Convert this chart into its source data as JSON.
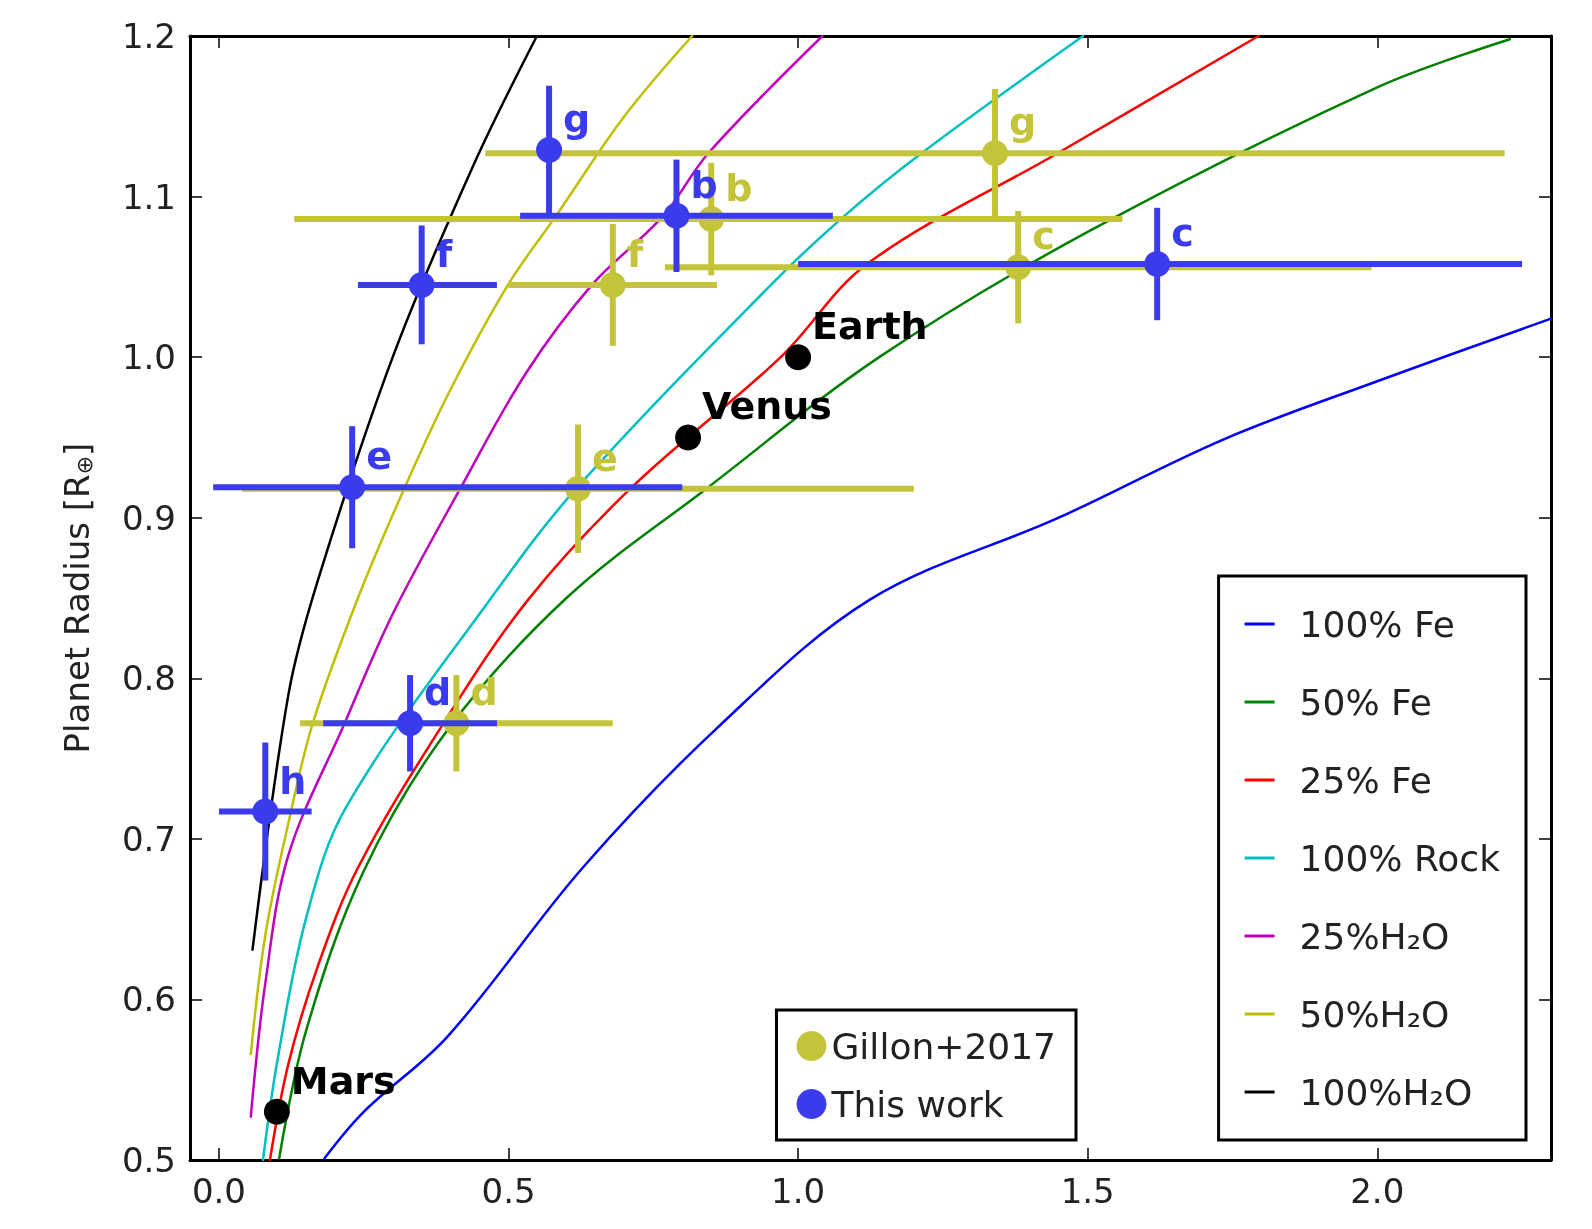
{
  "chart_data": {
    "type": "scatter",
    "ylabel": "Planet Radius [R$_{⊕}$]",
    "xlim": [
      -0.05,
      2.3
    ],
    "ylim": [
      0.5,
      1.2
    ],
    "xticks": [
      {
        "value": 0,
        "label": "0.0"
      },
      0.5,
      {
        "value": 1,
        "label": "1.0"
      },
      1.5,
      {
        "value": 2,
        "label": "2.0"
      }
    ],
    "yticks": [
      0.5,
      0.6,
      0.7,
      0.8,
      0.9,
      {
        "value": 1,
        "label": "1.0"
      },
      1.1,
      1.2
    ],
    "grid": false,
    "legend": "bottom right",
    "series": [
      {
        "type": "line",
        "marker": "none",
        "name": "100% Fe",
        "color": "#0000ff",
        "x": [
          0.182,
          0.25,
          0.395,
          0.628,
          0.86,
          1.124,
          1.45,
          1.736,
          2.0,
          2.3
        ],
        "values": [
          0.501,
          0.53,
          0.577,
          0.682,
          0.769,
          0.849,
          0.9,
          0.949,
          0.985,
          1.024
        ]
      },
      {
        "type": "line",
        "marker": "none",
        "name": "50% Fe",
        "color": "#008000",
        "x": [
          0.104,
          0.15,
          0.25,
          0.395,
          0.6,
          0.845,
          1.14,
          1.5,
          2.0,
          2.229
        ],
        "values": [
          0.501,
          0.58,
          0.68,
          0.768,
          0.85,
          0.919,
          1.0,
          1.078,
          1.168,
          1.198
        ]
      },
      {
        "type": "line",
        "marker": "none",
        "name": "25% Fe",
        "color": "#ff0000",
        "x": [
          0.088,
          0.12,
          0.17,
          0.24,
          0.386,
          0.534,
          0.713,
          0.97,
          1.119,
          1.448,
          1.795
        ],
        "values": [
          0.5,
          0.56,
          0.62,
          0.682,
          0.771,
          0.849,
          0.919,
          1.0,
          1.058,
          1.127,
          1.2
        ]
      },
      {
        "type": "line",
        "marker": "none",
        "name": "100% Rock",
        "color": "#00bfbf",
        "x": [
          0.076,
          0.1,
          0.15,
          0.22,
          0.47,
          0.619,
          0.953,
          1.08,
          1.213,
          1.492
        ],
        "values": [
          0.5,
          0.56,
          0.65,
          0.72,
          0.85,
          0.919,
          1.045,
          1.088,
          1.127,
          1.2
        ]
      },
      {
        "type": "line",
        "marker": "none",
        "name": "25%H₂O",
        "color": "#bf00bf",
        "x": [
          0.055,
          0.08,
          0.12,
          0.217,
          0.3,
          0.418,
          0.53,
          0.644,
          0.767,
          0.845,
          1.042
        ],
        "values": [
          0.527,
          0.61,
          0.69,
          0.772,
          0.84,
          0.919,
          0.99,
          1.045,
          1.088,
          1.127,
          1.2
        ]
      },
      {
        "type": "line",
        "marker": "none",
        "name": "50%H₂O",
        "color": "#bfbf00",
        "x": [
          0.055,
          0.08,
          0.12,
          0.162,
          0.24,
          0.321,
          0.4,
          0.499,
          0.582,
          0.7,
          0.817
        ],
        "values": [
          0.566,
          0.64,
          0.71,
          0.772,
          0.85,
          0.919,
          0.98,
          1.045,
          1.088,
          1.15,
          1.2
        ]
      },
      {
        "type": "line",
        "marker": "none",
        "name": "100%H₂O",
        "color": "#000000",
        "x": [
          0.058,
          0.12,
          0.17,
          0.3,
          0.44,
          0.549
        ],
        "values": [
          0.631,
          0.79,
          0.86,
          1.0,
          1.12,
          1.2
        ]
      },
      {
        "marker": "circle",
        "name": "Gillon+2017",
        "color": "#c4c43a",
        "x": [
          0.85,
          1.38,
          0.41,
          0.62,
          0.68,
          1.34
        ],
        "values": [
          1.086,
          1.056,
          0.772,
          0.918,
          1.045,
          1.127
        ],
        "xerrors": [
          [
            0.13,
            1.56
          ],
          [
            0.77,
            1.99
          ],
          [
            0.14,
            0.68
          ],
          [
            0.04,
            1.2
          ],
          [
            0.5,
            0.86
          ],
          [
            0.46,
            2.22
          ]
        ],
        "errors": [
          0.035,
          0.035,
          0.03,
          0.04,
          0.038,
          0.04
        ]
      },
      {
        "marker": "circle",
        "name": "This work",
        "color": "#3b3bee",
        "x": [
          0.79,
          1.62,
          0.33,
          0.23,
          0.35,
          0.57,
          0.08
        ],
        "values": [
          1.088,
          1.058,
          0.772,
          0.919,
          1.045,
          1.129,
          0.717
        ],
        "xerrors": [
          [
            0.52,
            1.06
          ],
          [
            1.0,
            2.25
          ],
          [
            0.18,
            0.48
          ],
          [
            -0.01,
            0.8
          ],
          [
            0.24,
            0.48
          ],
          null,
          [
            0.0,
            0.16
          ]
        ],
        "errors": [
          0.035,
          0.035,
          0.03,
          0.038,
          0.037,
          0.04,
          0.043
        ]
      },
      {
        "marker": "circle",
        "color": "#000000",
        "x": [
          1.0,
          0.81,
          0.1
        ],
        "values": [
          1.0,
          0.95,
          0.53
        ]
      }
    ],
    "annotations": [
      {
        "text": "b",
        "x": 0.85,
        "y": 1.086
      },
      {
        "text": "c",
        "x": 1.38,
        "y": 1.056
      },
      {
        "text": "d",
        "x": 0.41,
        "y": 0.772
      },
      {
        "text": "e",
        "x": 0.62,
        "y": 0.918
      },
      {
        "text": "f",
        "x": 0.68,
        "y": 1.045
      },
      {
        "text": "g",
        "x": 1.34,
        "y": 1.127
      },
      {
        "text": "b",
        "x": 0.79,
        "y": 1.088
      },
      {
        "text": "c",
        "x": 1.62,
        "y": 1.058
      },
      {
        "text": "d",
        "x": 0.33,
        "y": 0.772
      },
      {
        "text": "e",
        "x": 0.23,
        "y": 0.919
      },
      {
        "text": "f",
        "x": 0.35,
        "y": 1.045
      },
      {
        "text": "g",
        "x": 0.57,
        "y": 1.129
      },
      {
        "text": "h",
        "x": 0.08,
        "y": 0.717
      },
      {
        "text": "Earth",
        "x": 1.0,
        "y": 1.0
      },
      {
        "text": "Venus",
        "x": 0.81,
        "y": 0.95
      },
      {
        "text": "Mars",
        "x": 0.1,
        "y": 0.53
      }
    ]
  }
}
